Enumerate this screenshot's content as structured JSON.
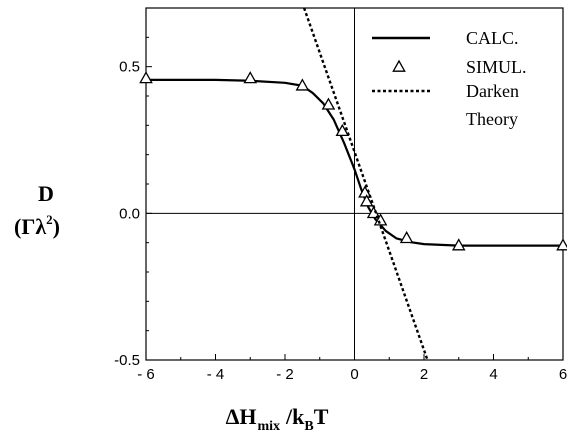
{
  "chart_data": {
    "type": "line",
    "xlim": [
      -6,
      6
    ],
    "ylim": [
      -0.5,
      0.7
    ],
    "x_ticks": [
      -6,
      -4,
      -2,
      0,
      2,
      4,
      6
    ],
    "x_tick_labels": [
      "- 6",
      "- 4",
      "- 2",
      "0",
      "2",
      "4",
      "6"
    ],
    "y_ticks": [
      -0.5,
      0.0,
      0.5
    ],
    "y_tick_labels": [
      "-0.5",
      "0.0",
      "0.5"
    ],
    "xlabel": {
      "delta": "ΔH",
      "mix": "mix",
      "slash_k": "/k",
      "b": "B",
      "t": "T"
    },
    "ylabel": {
      "line1": "D",
      "line2_open": "(Γλ",
      "line2_sup": "2",
      "line2_close": ")"
    },
    "grid": false,
    "reference_lines": {
      "x": 0,
      "y": 0
    },
    "legend_position": "top-right",
    "series": [
      {
        "name": "CALC.",
        "style": "solid",
        "x": [
          -6,
          -4,
          -3,
          -2,
          -1.5,
          -1.2,
          -0.9,
          -0.6,
          -0.3,
          0,
          0.2,
          0.4,
          0.6,
          0.9,
          1.2,
          1.6,
          2,
          3,
          4,
          5,
          6
        ],
        "y": [
          0.455,
          0.455,
          0.452,
          0.445,
          0.435,
          0.41,
          0.375,
          0.32,
          0.24,
          0.15,
          0.08,
          0.02,
          -0.02,
          -0.06,
          -0.085,
          -0.098,
          -0.105,
          -0.11,
          -0.11,
          -0.11,
          -0.11
        ]
      },
      {
        "name": "SIMUL.",
        "style": "triangle",
        "x": [
          -6,
          -3,
          -1.5,
          -0.75,
          -0.35,
          0.3,
          0.35,
          0.55,
          0.75,
          1.5,
          3,
          6
        ],
        "y": [
          0.46,
          0.46,
          0.435,
          0.37,
          0.28,
          0.07,
          0.04,
          0.0,
          -0.025,
          -0.085,
          -0.11,
          -0.11
        ]
      },
      {
        "name": "Darken Theory",
        "legend_lines": [
          "Darken",
          "Theory"
        ],
        "style": "dotted",
        "x": [
          -1.45,
          2.1
        ],
        "y": [
          0.7,
          -0.5
        ]
      }
    ]
  }
}
